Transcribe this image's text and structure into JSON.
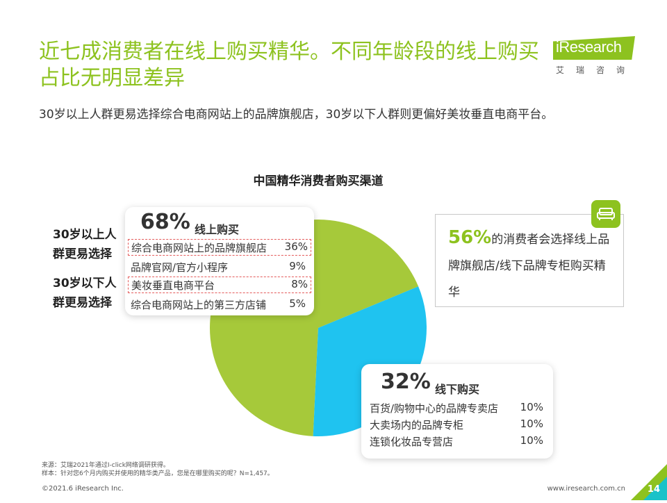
{
  "slide": {
    "title": "近七成消费者在线上购买精华。不同年龄段的线上购买占比无明显差异",
    "subtitle": "30岁以上人群更易选择综合电商网站上的品牌旗舰店，30岁以下人群则更偏好美妆垂直电商平台。"
  },
  "logo": {
    "name": "iResearch",
    "sub": "艾瑞咨询"
  },
  "side_labels": {
    "over30": "30岁以上人群更易选择",
    "under30": "30岁以下人群更易选择"
  },
  "callout": {
    "highlight": "56%",
    "text": "的消费者会选择线上品牌旗舰店/线下品牌专柜购买精华"
  },
  "chart_data": {
    "type": "pie",
    "title": "中国精华消费者购买渠道",
    "slices": [
      {
        "name": "线上购买",
        "value": 68,
        "label": "68%",
        "color": "#a6c93a"
      },
      {
        "name": "线下购买",
        "value": 32,
        "label": "32%",
        "color": "#1fc3f0"
      }
    ],
    "breakdown": {
      "online": [
        {
          "label": "综合电商网站上的品牌旗舰店",
          "value": "36%"
        },
        {
          "label": "品牌官网/官方小程序",
          "value": "9%"
        },
        {
          "label": "美妆垂直电商平台",
          "value": "8%"
        },
        {
          "label": "综合电商网站上的第三方店铺",
          "value": "5%"
        }
      ],
      "offline": [
        {
          "label": "百货/购物中心的品牌专卖店",
          "value": "10%"
        },
        {
          "label": "大卖场内的品牌专柜",
          "value": "10%"
        },
        {
          "label": "连锁化妆品专营店",
          "value": "10%"
        }
      ]
    }
  },
  "footer": {
    "source": "来源：艾瑞2021年通过I-click网络调研获得。",
    "sample": "样本：针对您6个月内购买并使用的精华类产品，您是在哪里购买的呢？N=1,457。",
    "copyright": "©2021.6 iResearch Inc.",
    "site": "www.iresearch.com.cn",
    "page": "14"
  }
}
